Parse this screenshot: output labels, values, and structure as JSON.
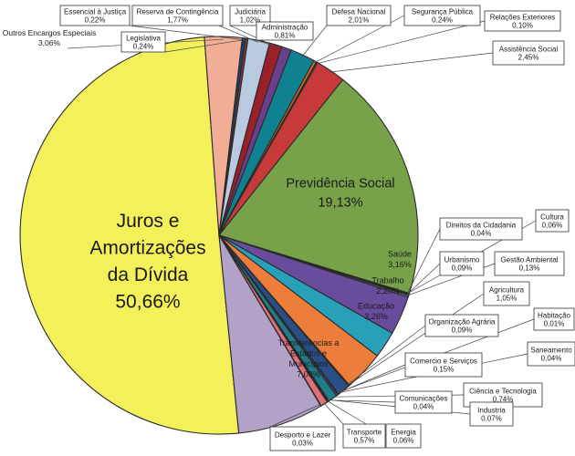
{
  "chart_data": {
    "type": "pie",
    "slices": [
      {
        "label": "Juros e Amortizações da Dívida",
        "value": 50.66,
        "value_text": "50,66%",
        "color": "#f3f05a"
      },
      {
        "label": "Outros Encargos Especiais",
        "value": 3.06,
        "value_text": "3,06%",
        "color": "#f2ad96"
      },
      {
        "label": "Legislativa",
        "value": 0.24,
        "value_text": "0,24%",
        "color": "#1f3f6e"
      },
      {
        "label": "Essencial à Justiça",
        "value": 0.22,
        "value_text": "0,22%",
        "color": "#7b3838"
      },
      {
        "label": "Reserva de Contingência",
        "value": 1.77,
        "value_text": "1,77%",
        "color": "#b8c9e0"
      },
      {
        "label": "Judiciária",
        "value": 1.02,
        "value_text": "1,02%",
        "color": "#9b2027"
      },
      {
        "label": "Administração",
        "value": 0.81,
        "value_text": "0,81%",
        "color": "#6c3f8c"
      },
      {
        "label": "Defesa Nacional",
        "value": 2.01,
        "value_text": "2,01%",
        "color": "#0f8190"
      },
      {
        "label": "Segurança Pública",
        "value": 0.24,
        "value_text": "0,24%",
        "color": "#d2691e"
      },
      {
        "label": "Relações Exteriores",
        "value": 0.1,
        "value_text": "0,10%",
        "color": "#2b4a7a"
      },
      {
        "label": "Assistência Social",
        "value": 2.45,
        "value_text": "2,45%",
        "color": "#c63a3a"
      },
      {
        "label": "Previdência Social",
        "value": 19.13,
        "value_text": "19,13%",
        "color": "#77a24a"
      },
      {
        "label": "Direitos da Cidadania",
        "value": 0.04,
        "value_text": "0,04%",
        "color": "#403c70"
      },
      {
        "label": "Cultura",
        "value": 0.06,
        "value_text": "0,06%",
        "color": "#2e7d8c"
      },
      {
        "label": "Urbanismo",
        "value": 0.09,
        "value_text": "0,09%",
        "color": "#c86b2b"
      },
      {
        "label": "Gestão Ambiental",
        "value": 0.13,
        "value_text": "0,13%",
        "color": "#7d9ac4"
      },
      {
        "label": "Saúde",
        "value": 3.16,
        "value_text": "3,16%",
        "color": "#6a4c9c"
      },
      {
        "label": "Trabalho",
        "value": 2.2,
        "value_text": "2,20%",
        "color": "#27a0b8"
      },
      {
        "label": "Educação",
        "value": 3.26,
        "value_text": "3,26%",
        "color": "#ec7d3a"
      },
      {
        "label": "Organização Agrária",
        "value": 0.09,
        "value_text": "0,09%",
        "color": "#4d6fa0"
      },
      {
        "label": "Agricultura",
        "value": 1.05,
        "value_text": "1,05%",
        "color": "#2a4f86"
      },
      {
        "label": "Habitação",
        "value": 0.01,
        "value_text": "0,01%",
        "color": "#8a3030"
      },
      {
        "label": "Saneamento",
        "value": 0.04,
        "value_text": "0,04%",
        "color": "#5c7a2e"
      },
      {
        "label": "Comercio e Serviços",
        "value": 0.15,
        "value_text": "0,15%",
        "color": "#5b4587"
      },
      {
        "label": "Ciência e Tecnologia",
        "value": 0.74,
        "value_text": "0,74%",
        "color": "#1f7d8a"
      },
      {
        "label": "Industria",
        "value": 0.07,
        "value_text": "0,07%",
        "color": "#d06a2a"
      },
      {
        "label": "Comunicações",
        "value": 0.04,
        "value_text": "0,04%",
        "color": "#8fa9d0"
      },
      {
        "label": "Energia",
        "value": 0.06,
        "value_text": "0,06%",
        "color": "#b0423a"
      },
      {
        "label": "Transporte",
        "value": 0.57,
        "value_text": "0,57%",
        "color": "#e0707a"
      },
      {
        "label": "Desporto e Lazer",
        "value": 0.03,
        "value_text": "0,03%",
        "color": "#7a3a4a"
      },
      {
        "label": "Transferências a Estados e Municípios",
        "value": 7.0,
        "value_text": "7,00%",
        "color": "#b3a2c8"
      }
    ]
  }
}
